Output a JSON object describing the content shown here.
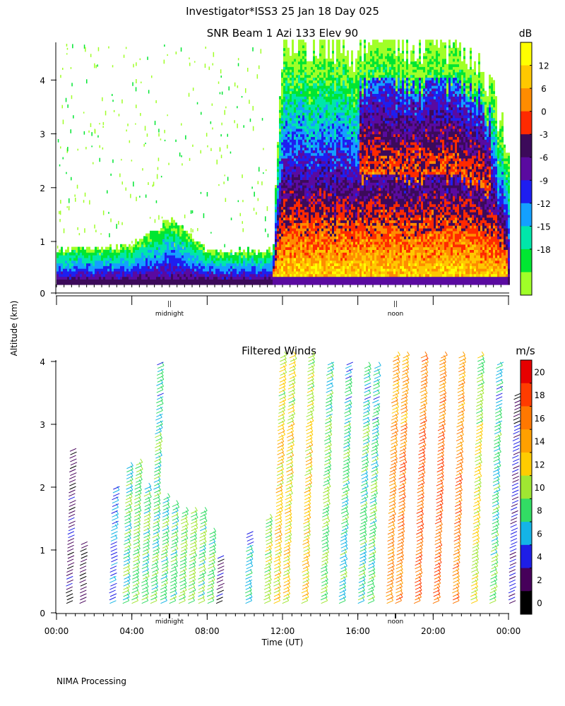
{
  "page": {
    "title": "Investigator*ISS3  25 Jan 18 Day 025",
    "ylabel": "Altitude (km)",
    "footer": "NIMA Processing"
  },
  "chart_data": [
    {
      "type": "heatmap",
      "title": "SNR Beam 1 Azi 133 Elev 90",
      "ylim": [
        0,
        4.7
      ],
      "yticks": [
        "0",
        "1",
        "2",
        "3",
        "4"
      ],
      "colorbar": {
        "unit": "dB",
        "labels": [
          "12",
          "6",
          "0",
          "-3",
          "-6",
          "-9",
          "-12",
          "-15",
          "-18"
        ],
        "colors": [
          "#ffff00",
          "#ffc800",
          "#ff8c00",
          "#ff2a00",
          "#3c0a5a",
          "#5a0aa0",
          "#1e1ef0",
          "#14a0ff",
          "#00e6aa",
          "#00e632",
          "#a0ff28"
        ]
      },
      "day_markers": [
        "midnight",
        "noon"
      ],
      "tick_mark": "||",
      "series": [
        {
          "name": "",
          "x": [
            0,
            2,
            4,
            6,
            8,
            10,
            11.4,
            12,
            13,
            14,
            15,
            16,
            17,
            18,
            19,
            20,
            21,
            22,
            23,
            24
          ],
          "y": [
            0.85,
            0.85,
            0.9,
            1.4,
            0.8,
            0.8,
            0.8,
            4.7,
            4.7,
            4.7,
            4.6,
            4.5,
            4.7,
            4.7,
            4.5,
            4.7,
            4.6,
            4.3,
            4.0,
            2.5
          ]
        }
      ]
    },
    {
      "type": "scatter",
      "title": "Filtered Winds",
      "xlabel": "Time (UT)",
      "xlim": [
        0,
        24
      ],
      "ylim": [
        0,
        4.1
      ],
      "xticks": [
        "00:00",
        "04:00",
        "08:00",
        "12:00",
        "16:00",
        "20:00",
        "00:00"
      ],
      "yticks": [
        "0",
        "1",
        "2",
        "3",
        "4"
      ],
      "colorbar": {
        "unit": "m/s",
        "labels": [
          "20",
          "18",
          "16",
          "14",
          "12",
          "10",
          "8",
          "6",
          "4",
          "2",
          "0"
        ],
        "colors": [
          "#e60000",
          "#ff3c00",
          "#ff7800",
          "#ffa000",
          "#ffcc00",
          "#a0e632",
          "#32dc64",
          "#14b4e6",
          "#1e1ee6",
          "#46005a",
          "#000000"
        ]
      },
      "day_markers": [
        "midnight",
        "noon"
      ],
      "series": [
        {
          "name": "",
          "x": [
            0.5,
            1.2,
            2.8,
            3.5,
            4.0,
            4.5,
            5.0,
            5.5,
            6.0,
            6.5,
            7.0,
            7.5,
            8.0,
            8.5,
            10.0,
            11.0,
            11.5,
            12.0,
            13.0,
            14.0,
            15.0,
            16.0,
            16.5,
            17.5,
            18.0,
            19.0,
            20.0,
            21.0,
            22.0,
            23.0,
            24.0
          ],
          "y": [
            2.6,
            1.1,
            2.0,
            2.3,
            2.4,
            2.0,
            4.0,
            1.8,
            1.7,
            1.6,
            1.6,
            1.6,
            1.3,
            0.9,
            1.3,
            1.5,
            4.1,
            4.1,
            4.1,
            4.0,
            4.0,
            3.9,
            3.9,
            4.1,
            4.1,
            4.1,
            4.1,
            4.1,
            4.1,
            4.0,
            3.5
          ],
          "speed": [
            3,
            3,
            6,
            9,
            10,
            9,
            9,
            9,
            9,
            10,
            10,
            9,
            9,
            3,
            7,
            11,
            13,
            13,
            13,
            10,
            9,
            9,
            9,
            16,
            17,
            18,
            18,
            17,
            12,
            9,
            4
          ]
        }
      ]
    }
  ]
}
